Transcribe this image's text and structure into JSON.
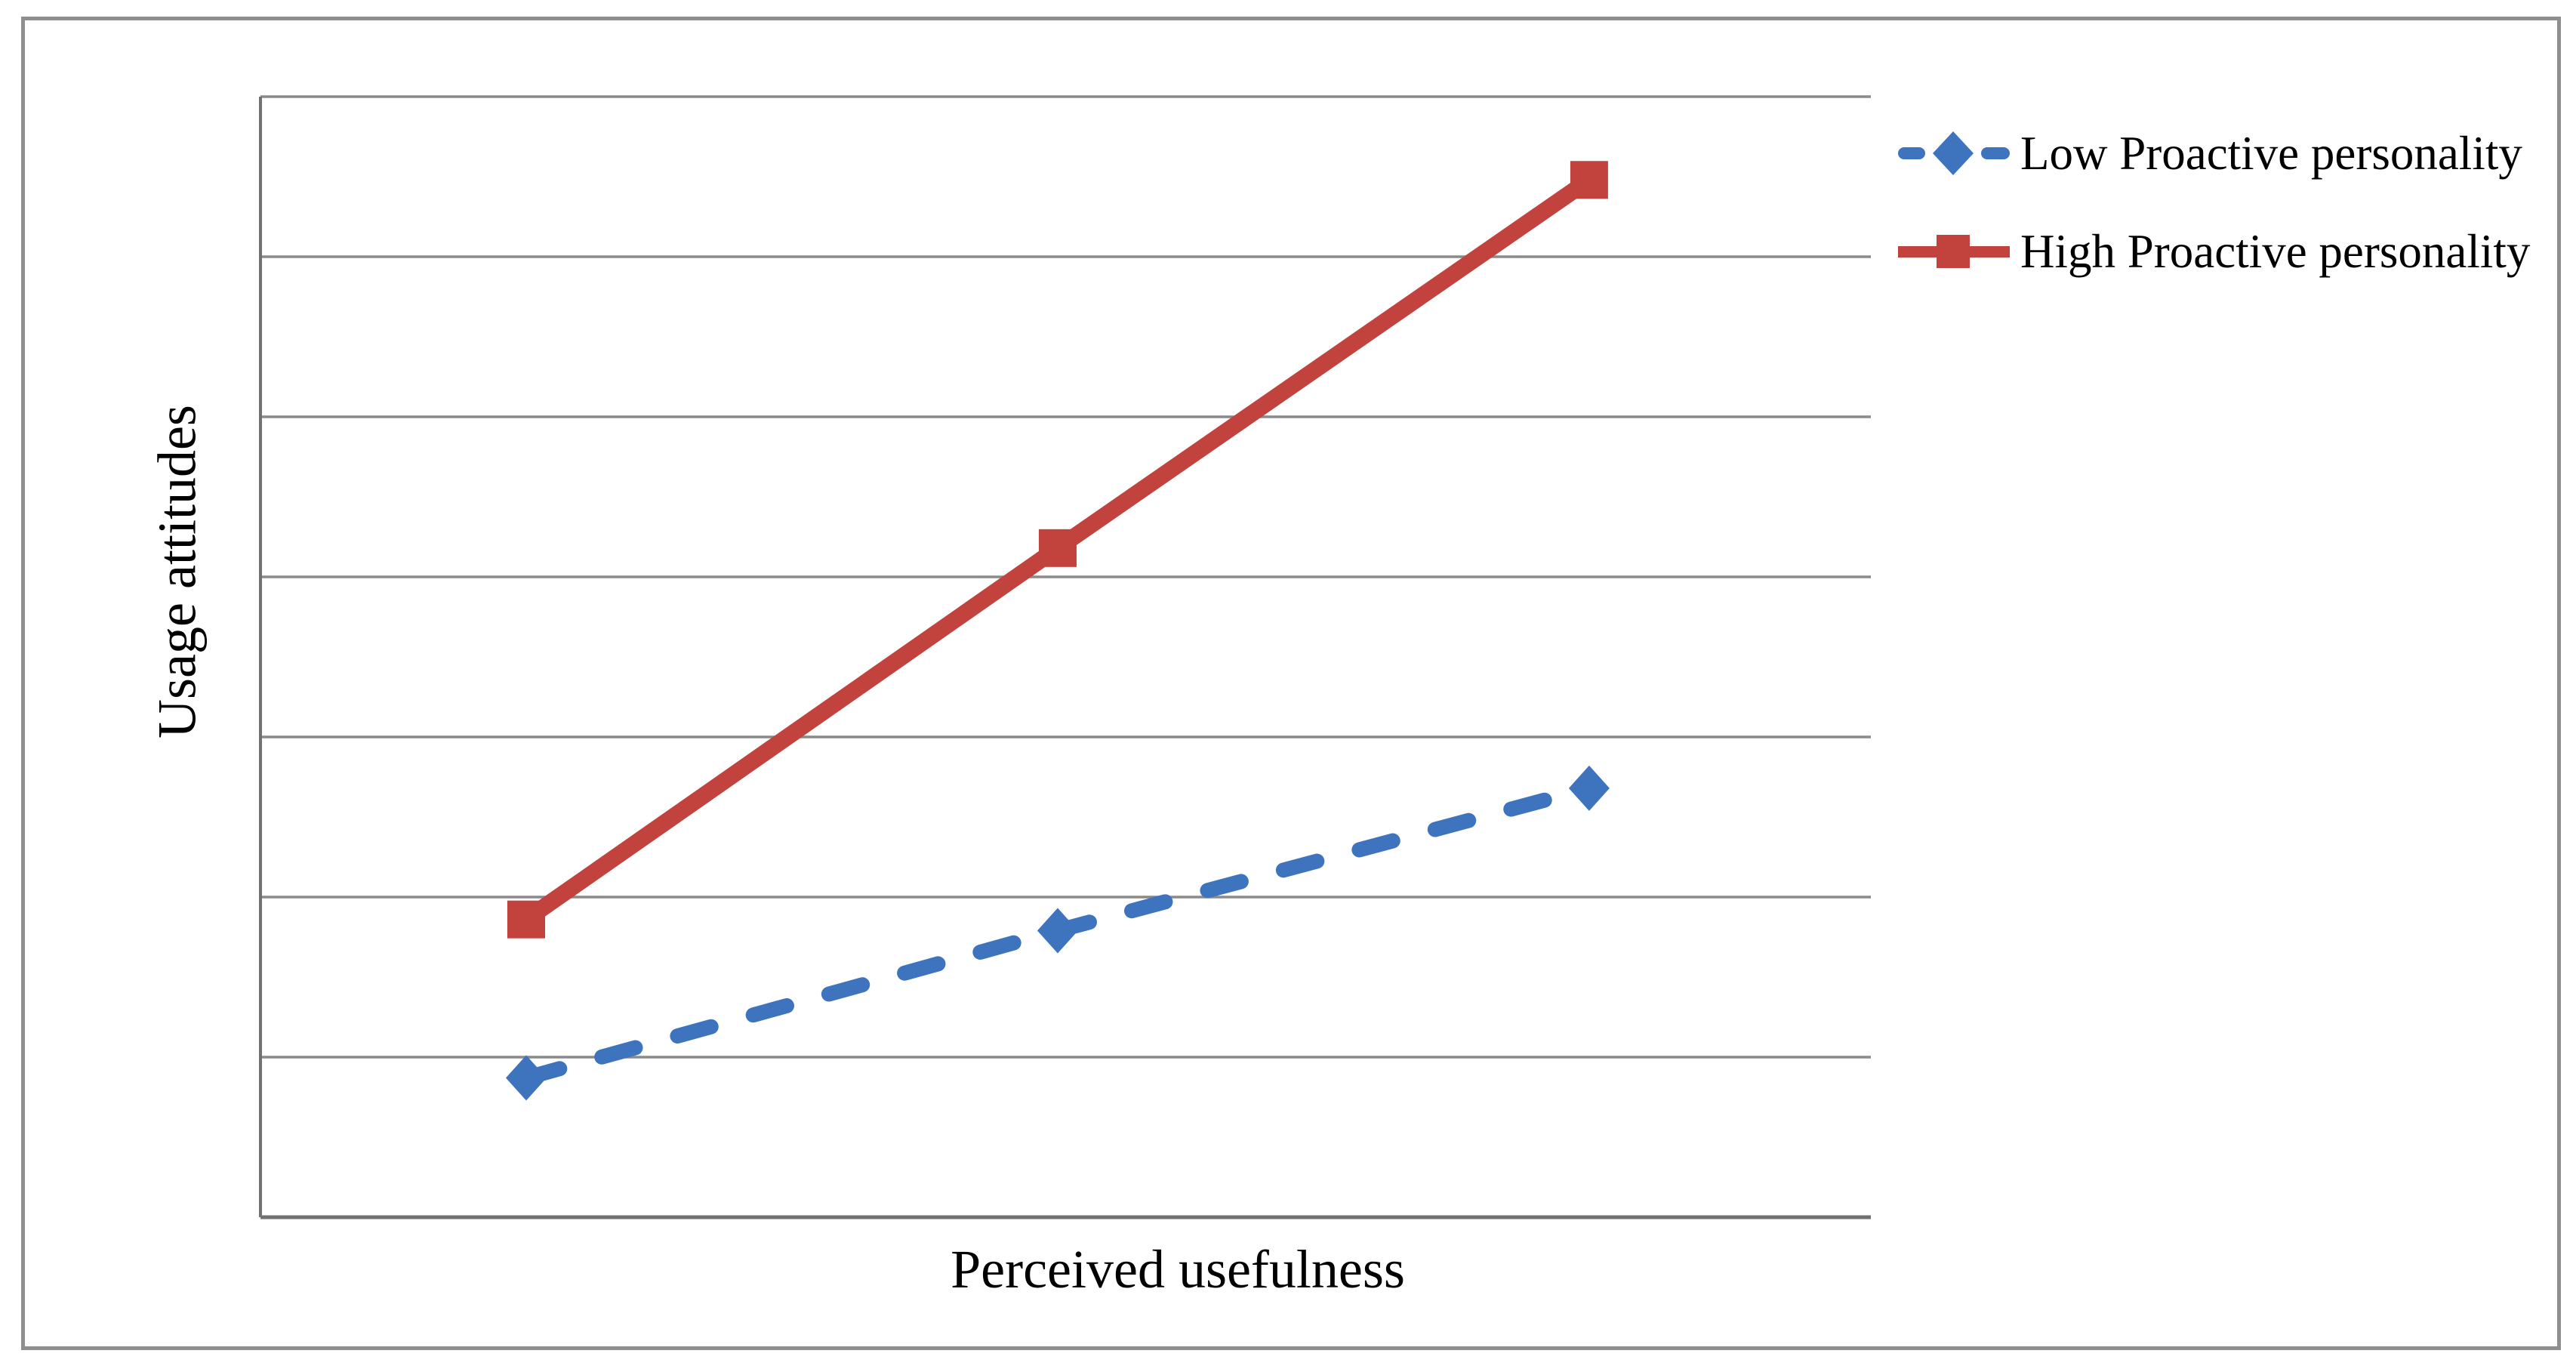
{
  "colors": {
    "blue_series": "#3E73BD",
    "red_series": "#C2423E",
    "gridline": "#8A8A8A",
    "axis_line": "#717171",
    "outer_border": "#8F8F8F",
    "text": "#000000",
    "background": "#FFFFFF"
  },
  "chart_data": {
    "type": "line",
    "title": "",
    "xlabel": "Perceived usefulness",
    "ylabel": "Usage attitudes",
    "x": [
      1,
      2,
      3
    ],
    "x_tick_labels_visible": false,
    "y_tick_labels_visible": false,
    "xlim": [
      0.5,
      3.53
    ],
    "ylim": [
      0,
      7
    ],
    "y_gridline_interval": 1,
    "y_units": "unlabeled gridline divisions (no numeric ticks shown)",
    "grid": "horizontal",
    "legend_position": "outside-top-right",
    "series": [
      {
        "name": "Low Proactive personality",
        "color": "#3E73BD",
        "line_style": "dashed",
        "marker": "diamond",
        "values": [
          0.87,
          1.79,
          2.68
        ]
      },
      {
        "name": "High Proactive personality",
        "color": "#C2423E",
        "line_style": "solid",
        "marker": "square",
        "values": [
          1.86,
          4.18,
          6.48
        ]
      }
    ]
  }
}
